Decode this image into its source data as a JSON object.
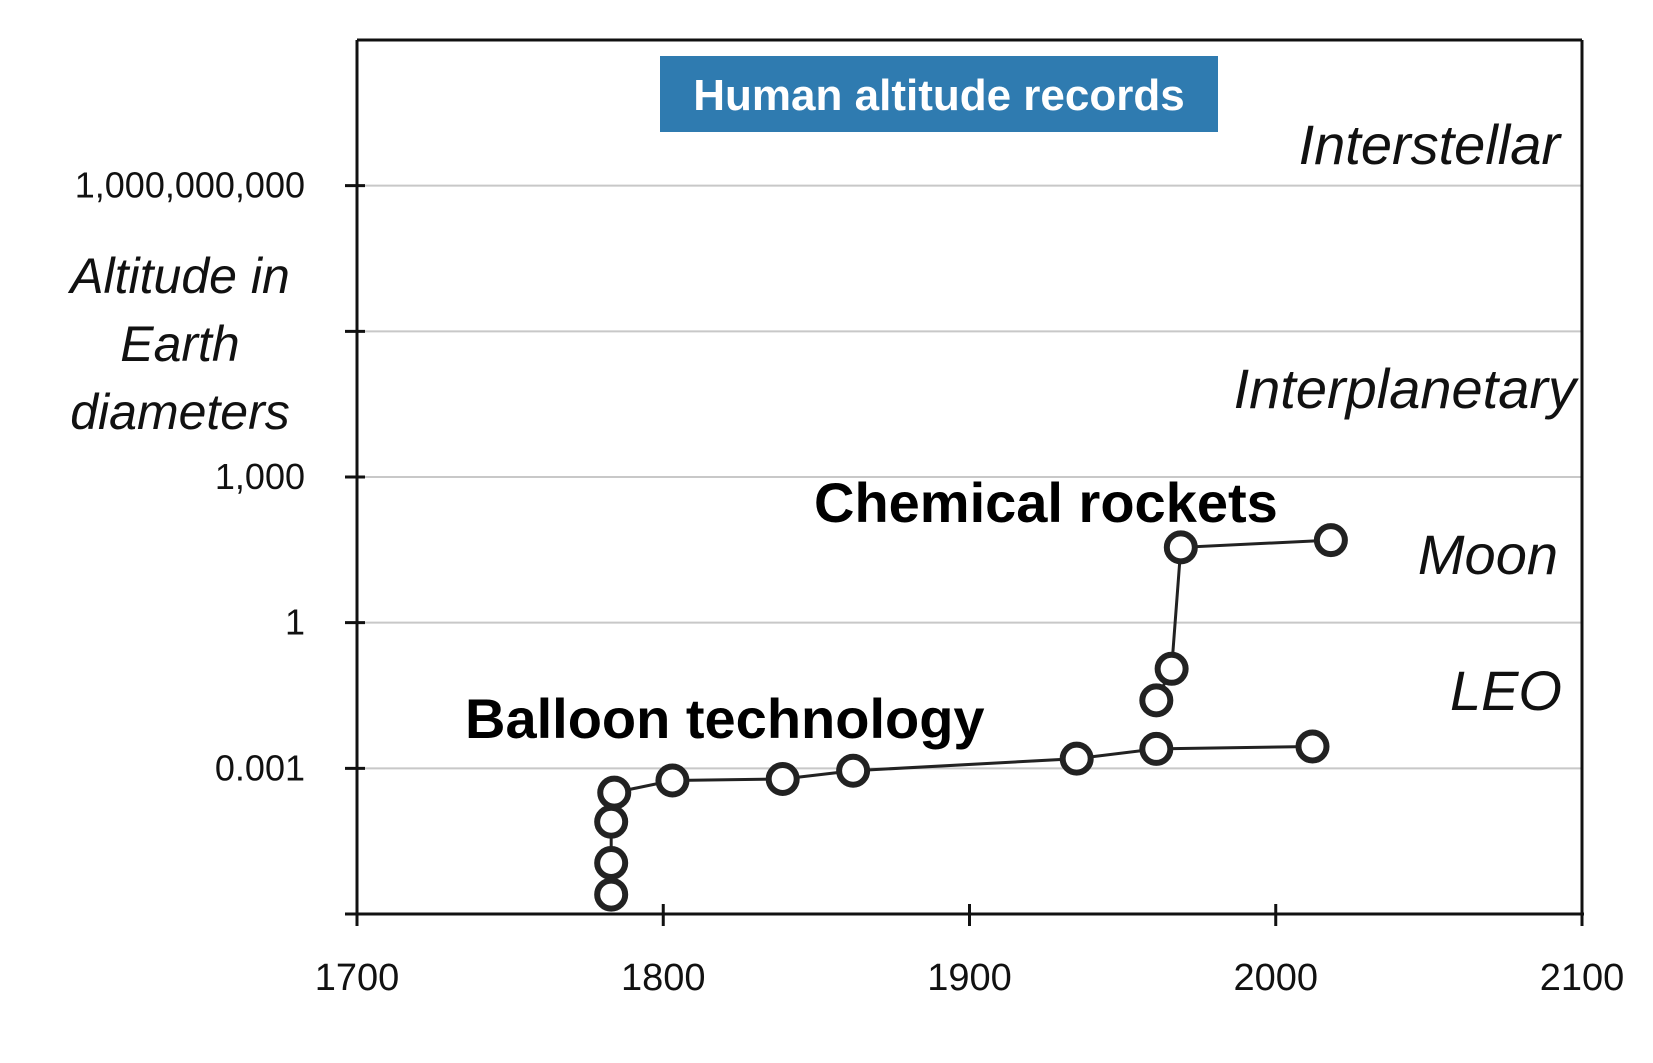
{
  "chart_data": {
    "type": "line",
    "title": "Human altitude records",
    "title_bg": "#2f7bb0",
    "ylabel_lines": [
      "Altitude in",
      "Earth",
      "diameters"
    ],
    "xlim": [
      1700,
      2100
    ],
    "x_ticks": [
      1700,
      1800,
      1900,
      2000,
      2100
    ],
    "y_scale": "log10",
    "ylim_log10": [
      -6,
      12
    ],
    "y_gridlines_log10": [
      -3,
      0,
      3,
      6,
      9
    ],
    "y_ticks_log10": [
      -6,
      -3,
      0,
      3,
      6,
      9
    ],
    "y_tick_labels": [
      {
        "log10": 9,
        "label": "1,000,000,000"
      },
      {
        "log10": 3,
        "label": "1,000"
      },
      {
        "log10": 0,
        "label": "1"
      },
      {
        "log10": -3,
        "label": "0.001"
      }
    ],
    "grid": true,
    "colors": {
      "grid": "#c8c8c8",
      "axis": "#111111",
      "line": "#222222",
      "marker_fill": "#ffffff"
    },
    "series": [
      {
        "points": [
          {
            "x": 1783,
            "y_log10": -5.6
          },
          {
            "x": 1783,
            "y_log10": -4.95
          },
          {
            "x": 1783,
            "y_log10": -4.1
          },
          {
            "x": 1784,
            "y_log10": -3.5
          },
          {
            "x": 1803,
            "y_log10": -3.25
          },
          {
            "x": 1839,
            "y_log10": -3.22
          },
          {
            "x": 1862,
            "y_log10": -3.05
          },
          {
            "x": 1935,
            "y_log10": -2.8
          },
          {
            "x": 1961,
            "y_log10": -2.6
          },
          {
            "x": 2012,
            "y_log10": -2.55
          }
        ]
      },
      {
        "points": [
          {
            "x": 1961,
            "y_log10": -1.6
          },
          {
            "x": 1966,
            "y_log10": -0.95
          },
          {
            "x": 1969,
            "y_log10": 1.55
          },
          {
            "x": 2018,
            "y_log10": 1.7
          }
        ]
      }
    ],
    "annotations": [
      "Balloon technology",
      "Chemical rockets"
    ],
    "regions": [
      "Interstellar",
      "Interplanetary",
      "Moon",
      "LEO"
    ]
  }
}
